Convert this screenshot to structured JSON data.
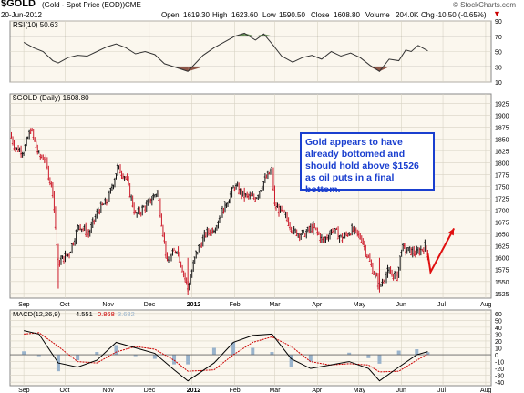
{
  "header": {
    "symbol": "$GOLD",
    "description": "(Gold - Spot Price (EOD))",
    "exchange": "CME",
    "date": "20-Jun-2012",
    "open_label": "Open",
    "open": "1619.30",
    "high_label": "High",
    "high": "1623.60",
    "low_label": "Low",
    "low": "1590.50",
    "close_label": "Close",
    "close": "1608.80",
    "volume_label": "Volume",
    "volume": "204.0K",
    "change_label": "Chg",
    "change": "-10.50 (-0.65%)",
    "change_icon": "down-triangle-icon",
    "copyright": "© StockCharts.com"
  },
  "annotation": {
    "text": "Gold appears to have already bottomed and should hold above $1526 as oil puts in a final bottom.",
    "arrow": {
      "from_date": "2012-06-22",
      "from_value": 1570,
      "to_date": "2012-07-09",
      "to_value": 1662
    }
  },
  "colors": {
    "up": "#111111",
    "down": "#cc1a2a",
    "rsi_line": "#333333",
    "rsi_overbought_fill": "#4a7a3a",
    "rsi_oversold_fill": "#7a3a2a",
    "macd_line": "#000000",
    "signal_line": "#cc0000",
    "histogram": "#99b3cc",
    "callout": "#1a3fcf",
    "arrow": "#e01010",
    "panel_bg": "#fbf7ee",
    "grid": "#d8d3c4"
  },
  "chart_data": [
    {
      "type": "line",
      "panel": "rsi",
      "title": "RSI(10) 50.63",
      "ylim": [
        10,
        90
      ],
      "y_ticks": [
        10,
        30,
        50,
        70,
        90
      ],
      "reference_lines": [
        30,
        70
      ],
      "grid": true,
      "series": [
        {
          "name": "RSI(10)",
          "points": [
            [
              "2011-09-01",
              62
            ],
            [
              "2011-09-08",
              55
            ],
            [
              "2011-09-15",
              50
            ],
            [
              "2011-09-22",
              38
            ],
            [
              "2011-09-26",
              35
            ],
            [
              "2011-10-03",
              42
            ],
            [
              "2011-10-10",
              45
            ],
            [
              "2011-10-17",
              44
            ],
            [
              "2011-10-24",
              50
            ],
            [
              "2011-10-31",
              56
            ],
            [
              "2011-11-07",
              60
            ],
            [
              "2011-11-14",
              55
            ],
            [
              "2011-11-21",
              47
            ],
            [
              "2011-11-28",
              50
            ],
            [
              "2011-12-05",
              46
            ],
            [
              "2011-12-12",
              34
            ],
            [
              "2011-12-19",
              30
            ],
            [
              "2011-12-29",
              24
            ],
            [
              "2012-01-09",
              45
            ],
            [
              "2012-01-17",
              55
            ],
            [
              "2012-01-24",
              62
            ],
            [
              "2012-02-01",
              70
            ],
            [
              "2012-02-08",
              74
            ],
            [
              "2012-02-16",
              65
            ],
            [
              "2012-02-22",
              73
            ],
            [
              "2012-02-29",
              58
            ],
            [
              "2012-03-06",
              44
            ],
            [
              "2012-03-14",
              36
            ],
            [
              "2012-03-21",
              42
            ],
            [
              "2012-03-28",
              45
            ],
            [
              "2012-04-04",
              40
            ],
            [
              "2012-04-11",
              50
            ],
            [
              "2012-04-18",
              44
            ],
            [
              "2012-04-25",
              48
            ],
            [
              "2012-05-02",
              42
            ],
            [
              "2012-05-09",
              32
            ],
            [
              "2012-05-16",
              24
            ],
            [
              "2012-05-23",
              40
            ],
            [
              "2012-05-30",
              38
            ],
            [
              "2012-06-04",
              52
            ],
            [
              "2012-06-08",
              50
            ],
            [
              "2012-06-13",
              58
            ],
            [
              "2012-06-20",
              51
            ]
          ]
        }
      ]
    },
    {
      "type": "line",
      "panel": "price",
      "title": "$GOLD (Daily) 1608.80",
      "ylim": [
        1515,
        1945
      ],
      "y_ticks": [
        1525,
        1550,
        1575,
        1600,
        1625,
        1650,
        1675,
        1700,
        1725,
        1750,
        1775,
        1800,
        1825,
        1850,
        1875,
        1900,
        1925
      ],
      "x_ticks": [
        "Sep",
        "Oct",
        "Nov",
        "Dec",
        "2012",
        "Feb",
        "Mar",
        "Apr",
        "May",
        "Jun",
        "Jul",
        "Aug"
      ],
      "x_range": [
        "2011-08-22",
        "2012-08-05"
      ],
      "grid": true,
      "series": [
        {
          "name": "$GOLD",
          "points": [
            [
              "2011-08-22",
              1860
            ],
            [
              "2011-08-26",
              1830
            ],
            [
              "2011-09-01",
              1825
            ],
            [
              "2011-09-06",
              1870
            ],
            [
              "2011-09-12",
              1815
            ],
            [
              "2011-09-16",
              1810
            ],
            [
              "2011-09-22",
              1740
            ],
            [
              "2011-09-26",
              1590
            ],
            [
              "2011-10-04",
              1610
            ],
            [
              "2011-10-11",
              1670
            ],
            [
              "2011-10-18",
              1650
            ],
            [
              "2011-10-25",
              1700
            ],
            [
              "2011-11-01",
              1720
            ],
            [
              "2011-11-08",
              1790
            ],
            [
              "2011-11-14",
              1770
            ],
            [
              "2011-11-21",
              1690
            ],
            [
              "2011-11-29",
              1710
            ],
            [
              "2011-12-07",
              1740
            ],
            [
              "2011-12-14",
              1590
            ],
            [
              "2011-12-21",
              1620
            ],
            [
              "2011-12-29",
              1535
            ],
            [
              "2012-01-04",
              1610
            ],
            [
              "2012-01-11",
              1650
            ],
            [
              "2012-01-18",
              1665
            ],
            [
              "2012-01-25",
              1710
            ],
            [
              "2012-02-01",
              1750
            ],
            [
              "2012-02-08",
              1730
            ],
            [
              "2012-02-16",
              1725
            ],
            [
              "2012-02-22",
              1760
            ],
            [
              "2012-02-28",
              1785
            ],
            [
              "2012-03-01",
              1710
            ],
            [
              "2012-03-08",
              1690
            ],
            [
              "2012-03-15",
              1655
            ],
            [
              "2012-03-22",
              1650
            ],
            [
              "2012-03-29",
              1665
            ],
            [
              "2012-04-05",
              1635
            ],
            [
              "2012-04-12",
              1660
            ],
            [
              "2012-04-19",
              1640
            ],
            [
              "2012-04-26",
              1660
            ],
            [
              "2012-05-03",
              1640
            ],
            [
              "2012-05-09",
              1590
            ],
            [
              "2012-05-16",
              1540
            ],
            [
              "2012-05-22",
              1570
            ],
            [
              "2012-05-29",
              1560
            ],
            [
              "2012-06-01",
              1620
            ],
            [
              "2012-06-06",
              1615
            ],
            [
              "2012-06-12",
              1610
            ],
            [
              "2012-06-18",
              1625
            ],
            [
              "2012-06-20",
              1608.8
            ]
          ]
        }
      ]
    },
    {
      "type": "line",
      "panel": "macd",
      "title": "MACD(12,26,9)",
      "ylim": [
        -45,
        65
      ],
      "y_ticks": [
        -40,
        -30,
        -20,
        -10,
        0,
        10,
        20,
        30,
        40,
        50,
        60
      ],
      "grid": true,
      "macd_value": "4.551",
      "signal_value": "0.868",
      "histogram_value": "3.682",
      "series": [
        {
          "name": "MACD",
          "points": [
            [
              "2011-09-01",
              35
            ],
            [
              "2011-09-12",
              30
            ],
            [
              "2011-09-26",
              -12
            ],
            [
              "2011-10-10",
              -18
            ],
            [
              "2011-10-24",
              -8
            ],
            [
              "2011-11-07",
              18
            ],
            [
              "2011-11-21",
              10
            ],
            [
              "2011-12-05",
              2
            ],
            [
              "2011-12-19",
              -22
            ],
            [
              "2011-12-29",
              -38
            ],
            [
              "2012-01-17",
              -12
            ],
            [
              "2012-01-31",
              18
            ],
            [
              "2012-02-14",
              28
            ],
            [
              "2012-02-28",
              30
            ],
            [
              "2012-03-13",
              -6
            ],
            [
              "2012-03-27",
              -20
            ],
            [
              "2012-04-10",
              -15
            ],
            [
              "2012-04-24",
              -10
            ],
            [
              "2012-05-08",
              -20
            ],
            [
              "2012-05-16",
              -38
            ],
            [
              "2012-05-30",
              -18
            ],
            [
              "2012-06-12",
              0
            ],
            [
              "2012-06-20",
              4.551
            ]
          ]
        },
        {
          "name": "Signal",
          "points": [
            [
              "2011-09-01",
              30
            ],
            [
              "2011-09-12",
              32
            ],
            [
              "2011-09-26",
              12
            ],
            [
              "2011-10-10",
              -10
            ],
            [
              "2011-10-24",
              -12
            ],
            [
              "2011-11-07",
              4
            ],
            [
              "2011-11-21",
              12
            ],
            [
              "2011-12-05",
              8
            ],
            [
              "2011-12-19",
              -8
            ],
            [
              "2011-12-29",
              -24
            ],
            [
              "2012-01-17",
              -22
            ],
            [
              "2012-01-31",
              0
            ],
            [
              "2012-02-14",
              18
            ],
            [
              "2012-02-28",
              26
            ],
            [
              "2012-03-13",
              12
            ],
            [
              "2012-03-27",
              -10
            ],
            [
              "2012-04-10",
              -15
            ],
            [
              "2012-04-24",
              -13
            ],
            [
              "2012-05-08",
              -15
            ],
            [
              "2012-05-16",
              -25
            ],
            [
              "2012-05-30",
              -24
            ],
            [
              "2012-06-12",
              -8
            ],
            [
              "2012-06-20",
              0.868
            ]
          ]
        }
      ]
    }
  ]
}
